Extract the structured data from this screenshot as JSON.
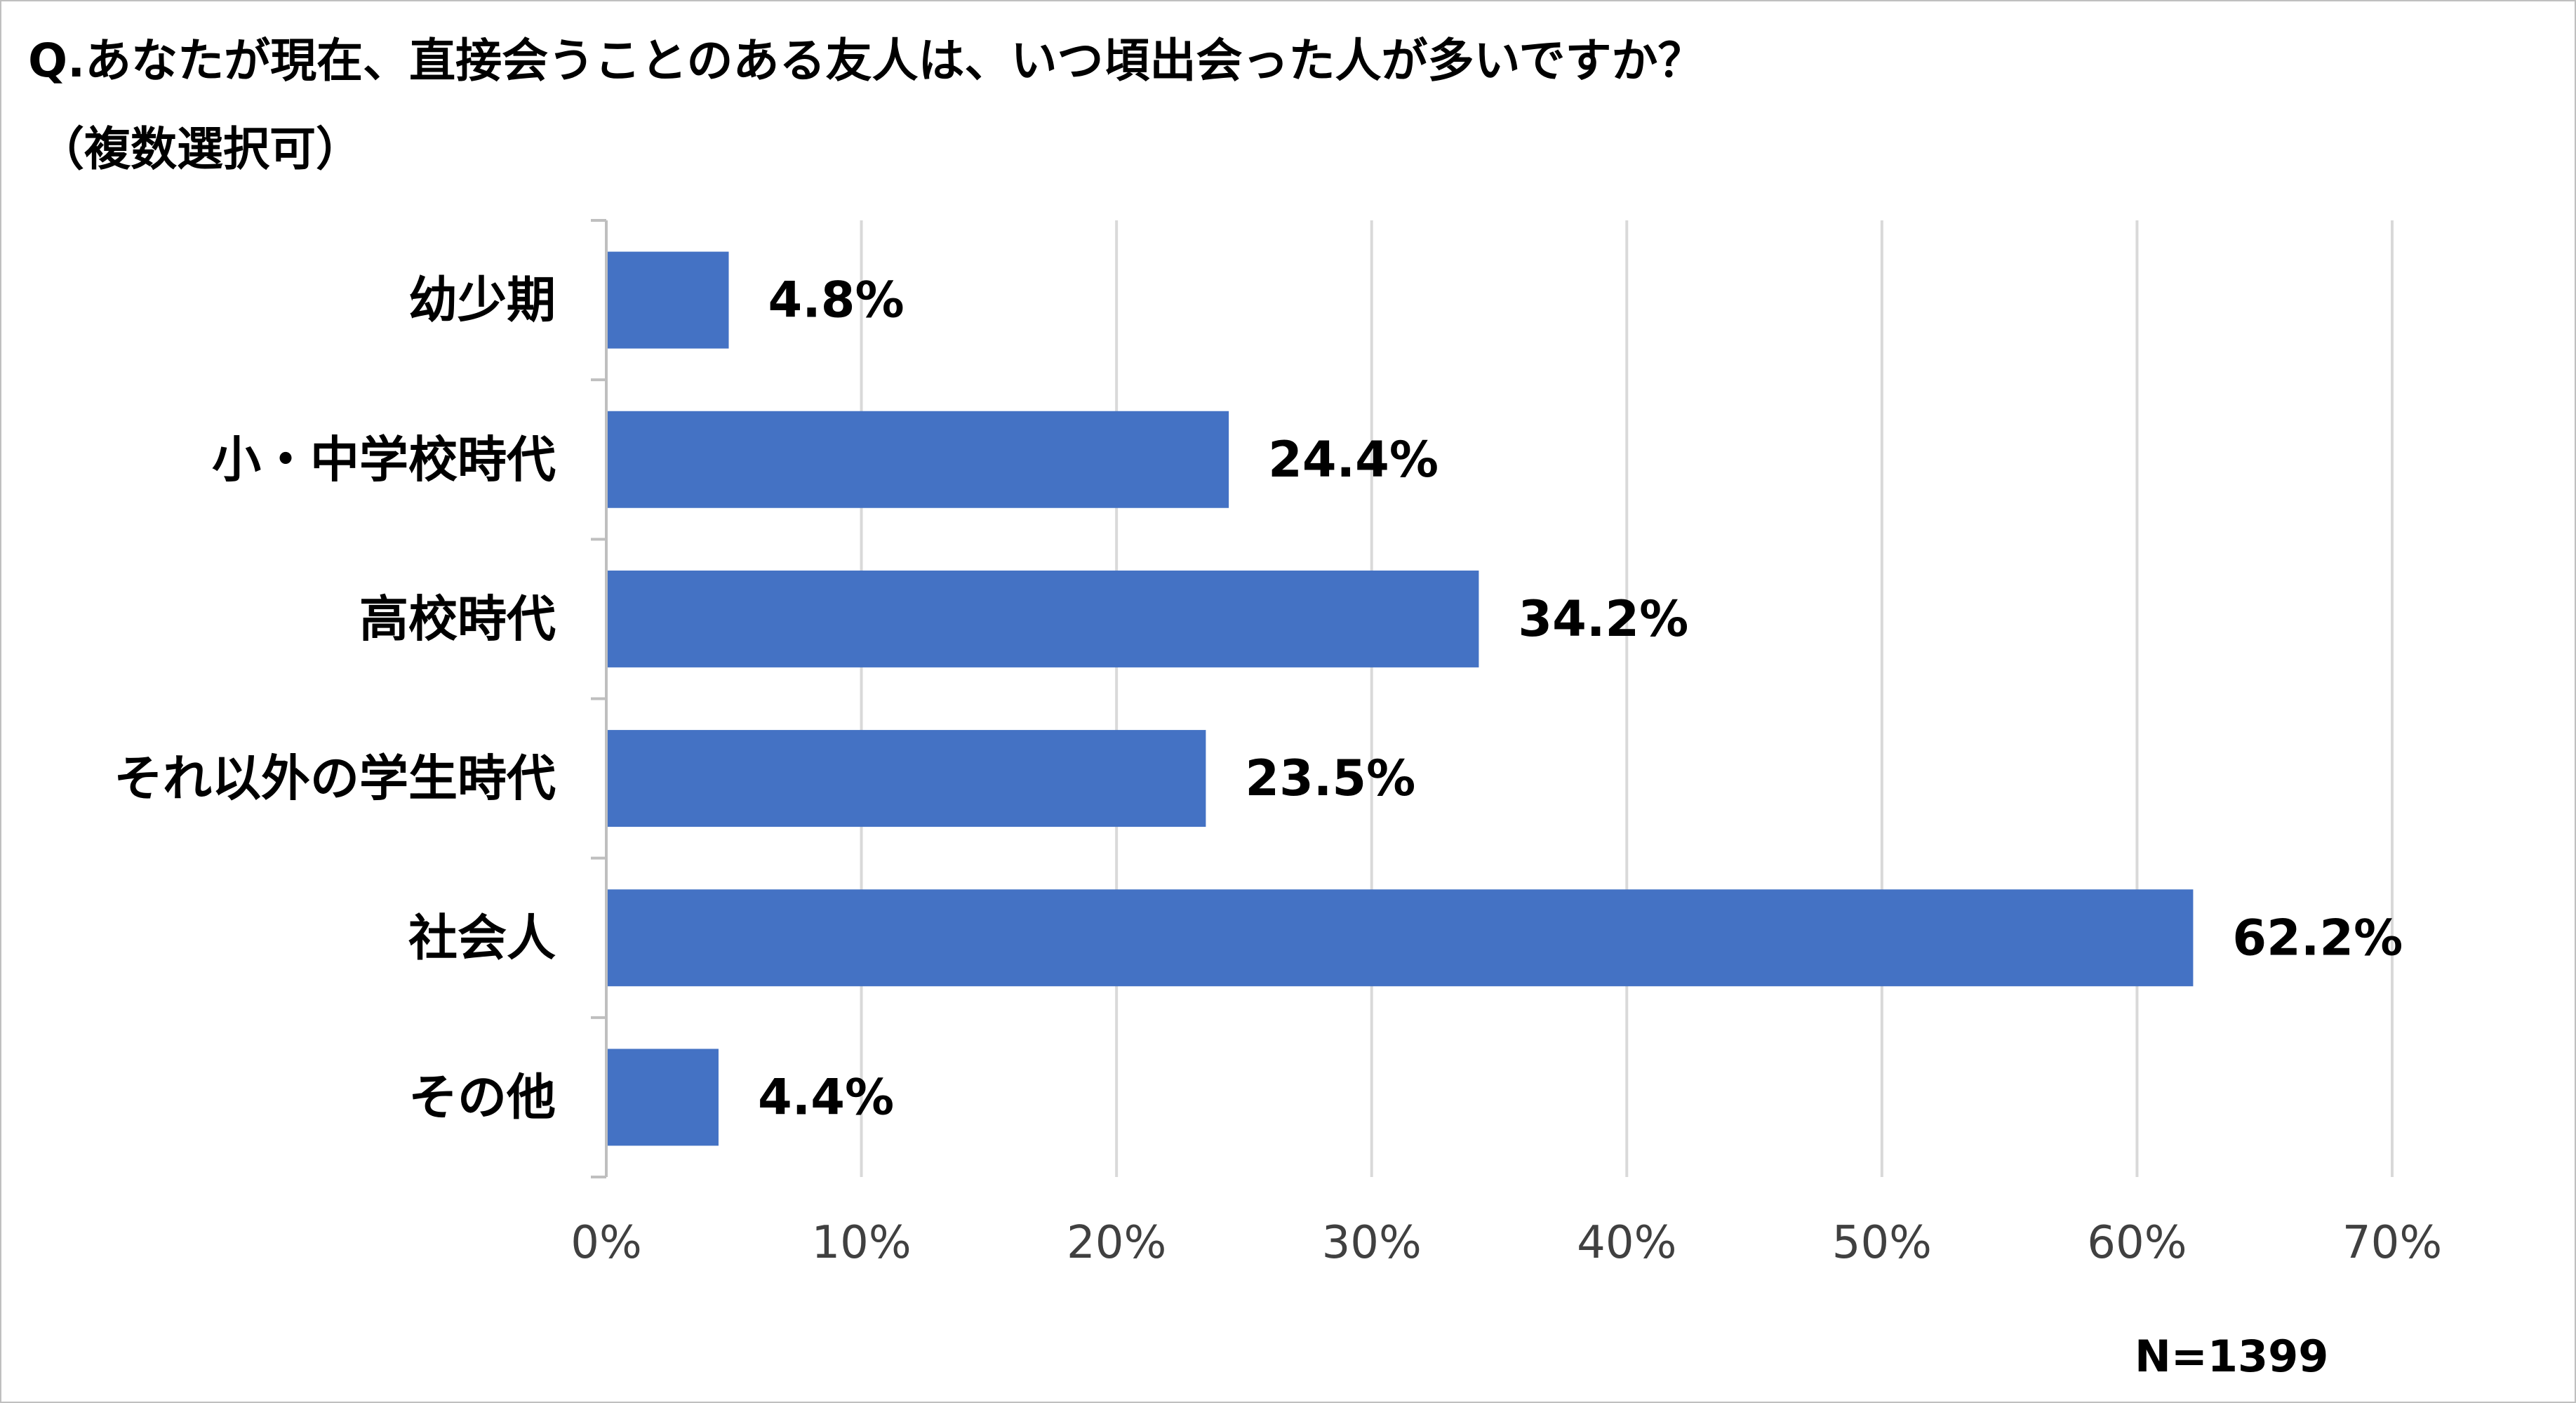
{
  "chart_data": {
    "type": "bar",
    "orientation": "horizontal",
    "title": "Q.あなたが現在、直接会うことのある友人は、いつ頃出会った人が多いですか？",
    "subtitle": "（複数選択可）",
    "categories": [
      "幼少期",
      "小・中学校時代",
      "高校時代",
      "それ以外の学生時代",
      "社会人",
      "その他"
    ],
    "values": [
      4.8,
      24.4,
      34.2,
      23.5,
      62.2,
      4.4
    ],
    "value_labels": [
      "4.8%",
      "24.4%",
      "34.2%",
      "23.5%",
      "62.2%",
      "4.4%"
    ],
    "xlim": [
      0,
      70
    ],
    "x_ticks": [
      0,
      10,
      20,
      30,
      40,
      50,
      60,
      70
    ],
    "x_tick_labels": [
      "0%",
      "10%",
      "20%",
      "30%",
      "40%",
      "50%",
      "60%",
      "70%"
    ],
    "grid": true,
    "legend": "none",
    "bar_color": "#4472c4",
    "grid_color": "#d9d9d9",
    "note": "N=1399"
  }
}
